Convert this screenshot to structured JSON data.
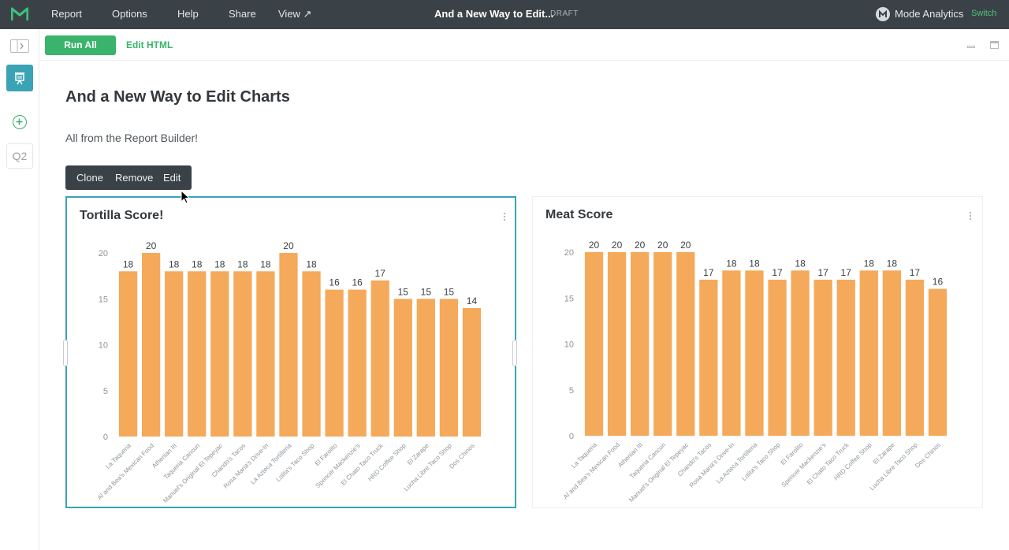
{
  "topbar": {
    "menu": [
      {
        "label": "Report"
      },
      {
        "label": "Options"
      },
      {
        "label": "Help"
      },
      {
        "label": "Share"
      },
      {
        "label": "View ↗"
      }
    ],
    "doc_title": "And a New Way to Edit...",
    "status": "DRAFT",
    "org_name": "Mode Analytics",
    "switch_label": "Switch"
  },
  "sidebar": {
    "query_label": "Q2"
  },
  "toolbar": {
    "run_all_label": "Run All",
    "edit_html_label": "Edit HTML"
  },
  "report": {
    "title": "And a New Way to Edit Charts",
    "subtitle": "All from the Report Builder!"
  },
  "context_menu": {
    "clone": "Clone",
    "remove": "Remove",
    "edit": "Edit"
  },
  "colors": {
    "bar": "#f5a95a",
    "accent_green": "#39b46a",
    "selected_border": "#3aa3b6",
    "topbar": "#3a4247"
  },
  "chart_data": [
    {
      "type": "bar",
      "title": "Tortilla Score!",
      "xlabel": "",
      "ylabel": "",
      "ylim": [
        0,
        20
      ],
      "yticks": [
        "0",
        "5",
        "10",
        "15",
        "20"
      ],
      "grid": false,
      "categories": [
        "La Taqueria",
        "Al and Bea's Mexican Food",
        "Athenian III",
        "Taqueria Cancun",
        "Manuel's Original El Tepeyac",
        "Chando's Tacos",
        "Rosa Maria's Drive-In",
        "La Azteca Tortilleria",
        "Lolita's Taco Shop",
        "El Farolito",
        "Spencer Mackenzie's",
        "El Chato Taco Truck",
        "HRD Coffee Shop",
        "El Zarape",
        "Lucha Libre Taco Shop",
        "Dos Chinos"
      ],
      "values": [
        18,
        20,
        18,
        18,
        18,
        18,
        18,
        20,
        18,
        16,
        16,
        17,
        15,
        15,
        15,
        14
      ]
    },
    {
      "type": "bar",
      "title": "Meat Score",
      "xlabel": "",
      "ylabel": "",
      "ylim": [
        0,
        20
      ],
      "yticks": [
        "0",
        "5",
        "10",
        "15",
        "20"
      ],
      "grid": false,
      "categories": [
        "La Taqueria",
        "Al and Bea's Mexican Food",
        "Athenian III",
        "Taqueria Cancun",
        "Manuel's Original El Tepeyac",
        "Chando's Tacos",
        "Rosa Maria's Drive-In",
        "La Azteca Tortilleria",
        "Lolita's Taco Shop",
        "El Farolito",
        "Spencer Mackenzie's",
        "El Chato Taco Truck",
        "HRD Coffee Shop",
        "El Zarape",
        "Lucha Libre Taco Shop",
        "Dos Chinos"
      ],
      "values": [
        20,
        20,
        20,
        20,
        20,
        17,
        18,
        18,
        17,
        18,
        17,
        17,
        18,
        18,
        17,
        16
      ]
    }
  ]
}
